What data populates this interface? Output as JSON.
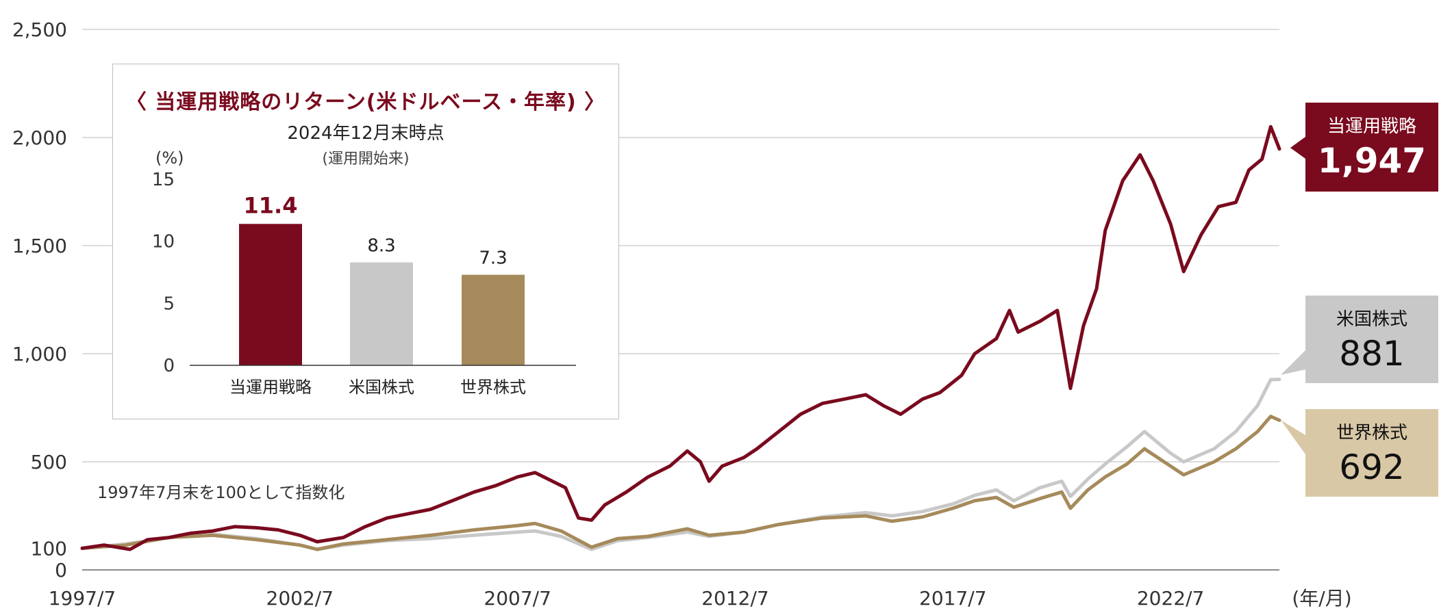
{
  "colors": {
    "strategy": "#7a0a1e",
    "us": "#c8c8c8",
    "world": "#a68a5b",
    "world_badge": "#d9c8a6",
    "grid": "#c8c8c8"
  },
  "annotation": "1997年7月末を100として指数化",
  "x_unit": "(年/月)",
  "inset": {
    "title": "〈 当運用戦略のリターン(米ドルベース・年率) 〉",
    "subtitle": "2024年12月末時点",
    "note": "(運用開始来)",
    "yunit": "(%)",
    "yticks": [
      "15",
      "10",
      "5",
      "0"
    ],
    "bars": [
      {
        "label": "当運用戦略",
        "value": 11.4,
        "value_label": "11.4"
      },
      {
        "label": "米国株式",
        "value": 8.3,
        "value_label": "8.3"
      },
      {
        "label": "世界株式",
        "value": 7.3,
        "value_label": "7.3"
      }
    ]
  },
  "badges": [
    {
      "label": "当運用戦略",
      "value": "1,947"
    },
    {
      "label": "米国株式",
      "value": "881"
    },
    {
      "label": "世界株式",
      "value": "692"
    }
  ],
  "chart_data": {
    "type": "line",
    "xlabel": "(年/月)",
    "xlim": [
      1997.5,
      2025.0
    ],
    "ylim": [
      0,
      2500
    ],
    "yticks": [
      0,
      100,
      500,
      1000,
      1500,
      2000,
      2500
    ],
    "ytick_labels": [
      "0",
      "100",
      "500",
      "1,000",
      "1,500",
      "2,000",
      "2,500"
    ],
    "xticks": [
      1997.5,
      2002.5,
      2007.5,
      2012.5,
      2017.5,
      2022.5
    ],
    "xtick_labels": [
      "1997/7",
      "2002/7",
      "2007/7",
      "2012/7",
      "2017/7",
      "2022/7"
    ],
    "grid": true,
    "series": [
      {
        "name": "当運用戦略",
        "points": [
          [
            1997.5,
            100
          ],
          [
            1998.0,
            115
          ],
          [
            1998.6,
            95
          ],
          [
            1999.0,
            140
          ],
          [
            1999.5,
            150
          ],
          [
            2000.0,
            170
          ],
          [
            2000.5,
            180
          ],
          [
            2001.0,
            200
          ],
          [
            2001.5,
            195
          ],
          [
            2002.0,
            185
          ],
          [
            2002.5,
            160
          ],
          [
            2002.9,
            130
          ],
          [
            2003.5,
            150
          ],
          [
            2004.0,
            200
          ],
          [
            2004.5,
            240
          ],
          [
            2005.0,
            260
          ],
          [
            2005.5,
            280
          ],
          [
            2006.0,
            320
          ],
          [
            2006.5,
            360
          ],
          [
            2007.0,
            390
          ],
          [
            2007.5,
            430
          ],
          [
            2007.9,
            450
          ],
          [
            2008.3,
            410
          ],
          [
            2008.6,
            380
          ],
          [
            2008.9,
            240
          ],
          [
            2009.2,
            230
          ],
          [
            2009.5,
            300
          ],
          [
            2010.0,
            360
          ],
          [
            2010.5,
            430
          ],
          [
            2011.0,
            480
          ],
          [
            2011.4,
            550
          ],
          [
            2011.7,
            500
          ],
          [
            2011.9,
            410
          ],
          [
            2012.2,
            480
          ],
          [
            2012.7,
            520
          ],
          [
            2013.0,
            560
          ],
          [
            2013.5,
            640
          ],
          [
            2014.0,
            720
          ],
          [
            2014.5,
            770
          ],
          [
            2015.0,
            790
          ],
          [
            2015.5,
            810
          ],
          [
            2015.9,
            760
          ],
          [
            2016.3,
            720
          ],
          [
            2016.8,
            790
          ],
          [
            2017.2,
            820
          ],
          [
            2017.7,
            900
          ],
          [
            2018.0,
            1000
          ],
          [
            2018.5,
            1070
          ],
          [
            2018.8,
            1200
          ],
          [
            2019.0,
            1100
          ],
          [
            2019.5,
            1150
          ],
          [
            2019.9,
            1200
          ],
          [
            2020.2,
            840
          ],
          [
            2020.5,
            1130
          ],
          [
            2020.8,
            1300
          ],
          [
            2021.0,
            1570
          ],
          [
            2021.4,
            1800
          ],
          [
            2021.8,
            1920
          ],
          [
            2022.1,
            1800
          ],
          [
            2022.5,
            1600
          ],
          [
            2022.8,
            1380
          ],
          [
            2023.2,
            1550
          ],
          [
            2023.6,
            1680
          ],
          [
            2024.0,
            1700
          ],
          [
            2024.3,
            1850
          ],
          [
            2024.6,
            1900
          ],
          [
            2024.8,
            2050
          ],
          [
            2025.0,
            1947
          ]
        ]
      },
      {
        "name": "米国株式",
        "points": [
          [
            1997.5,
            100
          ],
          [
            1998.5,
            120
          ],
          [
            1999.5,
            150
          ],
          [
            2000.5,
            165
          ],
          [
            2001.5,
            145
          ],
          [
            2002.5,
            115
          ],
          [
            2002.9,
            95
          ],
          [
            2003.5,
            115
          ],
          [
            2004.5,
            135
          ],
          [
            2005.5,
            145
          ],
          [
            2006.5,
            160
          ],
          [
            2007.5,
            175
          ],
          [
            2007.9,
            180
          ],
          [
            2008.5,
            155
          ],
          [
            2009.2,
            95
          ],
          [
            2009.8,
            135
          ],
          [
            2010.5,
            150
          ],
          [
            2011.4,
            175
          ],
          [
            2011.9,
            155
          ],
          [
            2012.7,
            175
          ],
          [
            2013.5,
            210
          ],
          [
            2014.5,
            245
          ],
          [
            2015.5,
            265
          ],
          [
            2016.1,
            250
          ],
          [
            2016.8,
            270
          ],
          [
            2017.5,
            305
          ],
          [
            2018.0,
            345
          ],
          [
            2018.5,
            370
          ],
          [
            2018.9,
            320
          ],
          [
            2019.5,
            380
          ],
          [
            2020.0,
            410
          ],
          [
            2020.2,
            340
          ],
          [
            2020.6,
            420
          ],
          [
            2021.0,
            490
          ],
          [
            2021.5,
            570
          ],
          [
            2021.9,
            640
          ],
          [
            2022.5,
            540
          ],
          [
            2022.8,
            500
          ],
          [
            2023.5,
            560
          ],
          [
            2024.0,
            640
          ],
          [
            2024.5,
            760
          ],
          [
            2024.8,
            880
          ],
          [
            2025.0,
            881
          ]
        ]
      },
      {
        "name": "世界株式",
        "points": [
          [
            1997.5,
            100
          ],
          [
            1998.5,
            115
          ],
          [
            1999.5,
            150
          ],
          [
            2000.5,
            160
          ],
          [
            2001.5,
            140
          ],
          [
            2002.5,
            115
          ],
          [
            2002.9,
            95
          ],
          [
            2003.5,
            120
          ],
          [
            2004.5,
            140
          ],
          [
            2005.5,
            160
          ],
          [
            2006.5,
            185
          ],
          [
            2007.5,
            205
          ],
          [
            2007.9,
            215
          ],
          [
            2008.5,
            180
          ],
          [
            2009.2,
            105
          ],
          [
            2009.8,
            145
          ],
          [
            2010.5,
            155
          ],
          [
            2011.4,
            190
          ],
          [
            2011.9,
            160
          ],
          [
            2012.7,
            175
          ],
          [
            2013.5,
            210
          ],
          [
            2014.5,
            240
          ],
          [
            2015.5,
            250
          ],
          [
            2016.1,
            225
          ],
          [
            2016.8,
            245
          ],
          [
            2017.5,
            285
          ],
          [
            2018.0,
            320
          ],
          [
            2018.5,
            335
          ],
          [
            2018.9,
            290
          ],
          [
            2019.5,
            330
          ],
          [
            2020.0,
            360
          ],
          [
            2020.2,
            285
          ],
          [
            2020.6,
            370
          ],
          [
            2021.0,
            430
          ],
          [
            2021.5,
            490
          ],
          [
            2021.9,
            560
          ],
          [
            2022.5,
            480
          ],
          [
            2022.8,
            440
          ],
          [
            2023.5,
            500
          ],
          [
            2024.0,
            560
          ],
          [
            2024.5,
            640
          ],
          [
            2024.8,
            710
          ],
          [
            2025.0,
            692
          ]
        ]
      }
    ]
  }
}
